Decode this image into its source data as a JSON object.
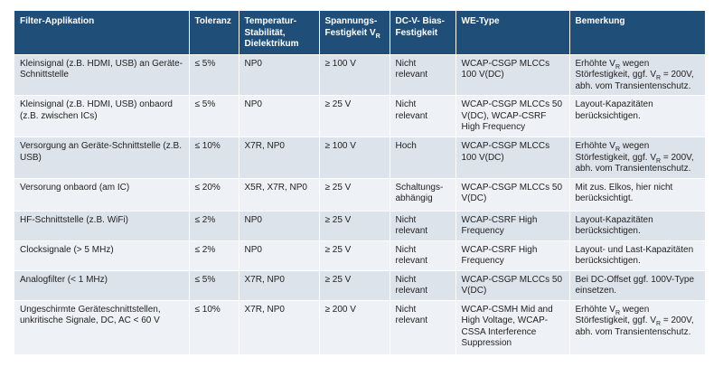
{
  "headers": {
    "app": "Filter-Applikation",
    "tol": "Toleranz",
    "temp": "Temperatur-Stabilität, Dielektrikum",
    "volt_pre": "Spannungs-Festigkeit V",
    "volt_sub": "R",
    "dcv": "DC-V- Bias-Festigkeit",
    "we": "WE-Type",
    "bem": "Bemerkung"
  },
  "rows": [
    {
      "app": "Kleinsignal (z.B. HDMI, USB) an Geräte-Schnittstelle",
      "tol": "≤ 5%",
      "temp": "NP0",
      "volt": "≥ 100 V",
      "dcv": "Nicht relevant",
      "we": "WCAP-CSGP MLCCs 100 V(DC)",
      "bem_a": "Erhöhte V",
      "bem_a_sub": "R",
      "bem_b": " wegen Störfestigkeit, ggf. V",
      "bem_b_sub": "R",
      "bem_c": " = 200V, abh. vom Transientenschutz."
    },
    {
      "app": "Kleinsignal (z.B. HDMI, USB) onbaord (z.B. zwischen ICs)",
      "tol": "≤ 5%",
      "temp": "NP0",
      "volt": "≥ 25 V",
      "dcv": "Nicht relevant",
      "we": "WCAP-CSGP MLCCs 50 V(DC), WCAP-CSRF High Frequency",
      "bem": "Layout-Kapazitäten berücksichtigen."
    },
    {
      "app": "Versorgung an Geräte-Schnittstelle (z.B. USB)",
      "tol": "≤ 10%",
      "temp": "X7R, NP0",
      "volt": "≥ 100 V",
      "dcv": "Hoch",
      "we": "WCAP-CSGP MLCCs 100 V(DC)",
      "bem_a": "Erhöhte V",
      "bem_a_sub": "R",
      "bem_b": " wegen Störfestigkeit, ggf. V",
      "bem_b_sub": "R",
      "bem_c": " = 200V, abh. vom Transientenschutz."
    },
    {
      "app": "Versorung onbaord (am IC)",
      "tol": "≤ 20%",
      "temp": "X5R, X7R, NP0",
      "volt": "≥ 25 V",
      "dcv": "Schaltungs-abhängig",
      "we": "WCAP-CSGP MLCCs 50 V(DC)",
      "bem": "Mit zus. Elkos, hier nicht berücksichtigt."
    },
    {
      "app": "HF-Schnittstelle (z.B. WiFi)",
      "tol": "≤ 2%",
      "temp": "NP0",
      "volt": "≥ 25 V",
      "dcv": "Nicht relevant",
      "we": "WCAP-CSRF High Frequency",
      "bem": "Layout-Kapazitäten berücksichtigen."
    },
    {
      "app": "Clocksignale (> 5 MHz)",
      "tol": "≤ 2%",
      "temp": "NP0",
      "volt": "≥ 25 V",
      "dcv": "Nicht relevant",
      "we": "WCAP-CSRF High Frequency",
      "bem": "Layout- und Last-Kapazitäten berücksichtigen."
    },
    {
      "app": "Analogfilter (< 1 MHz)",
      "tol": "≤ 5%",
      "temp": "X7R, NP0",
      "volt": "≥ 25 V",
      "dcv": "Nicht relevant",
      "we": "WCAP-CSGP MLCCs 50 V(DC)",
      "bem": "Bei DC-Offset ggf. 100V-Type einsetzen."
    },
    {
      "app": "Ungeschirmte Geräteschnittstellen, unkritische Signale, DC, AC < 60 V",
      "tol": "≤ 10%",
      "temp": "X7R, NP0",
      "volt": "≥ 200 V",
      "dcv": "Nicht relevant",
      "we": "WCAP-CSMH Mid and High Voltage, WCAP-CSSA Interference Suppression",
      "bem_a": "Erhöhte V",
      "bem_a_sub": "R",
      "bem_b": " wegen Störfestigkeit, ggf. V",
      "bem_b_sub": "R",
      "bem_c": " = 200V, abh. vom Transientenschutz."
    }
  ]
}
